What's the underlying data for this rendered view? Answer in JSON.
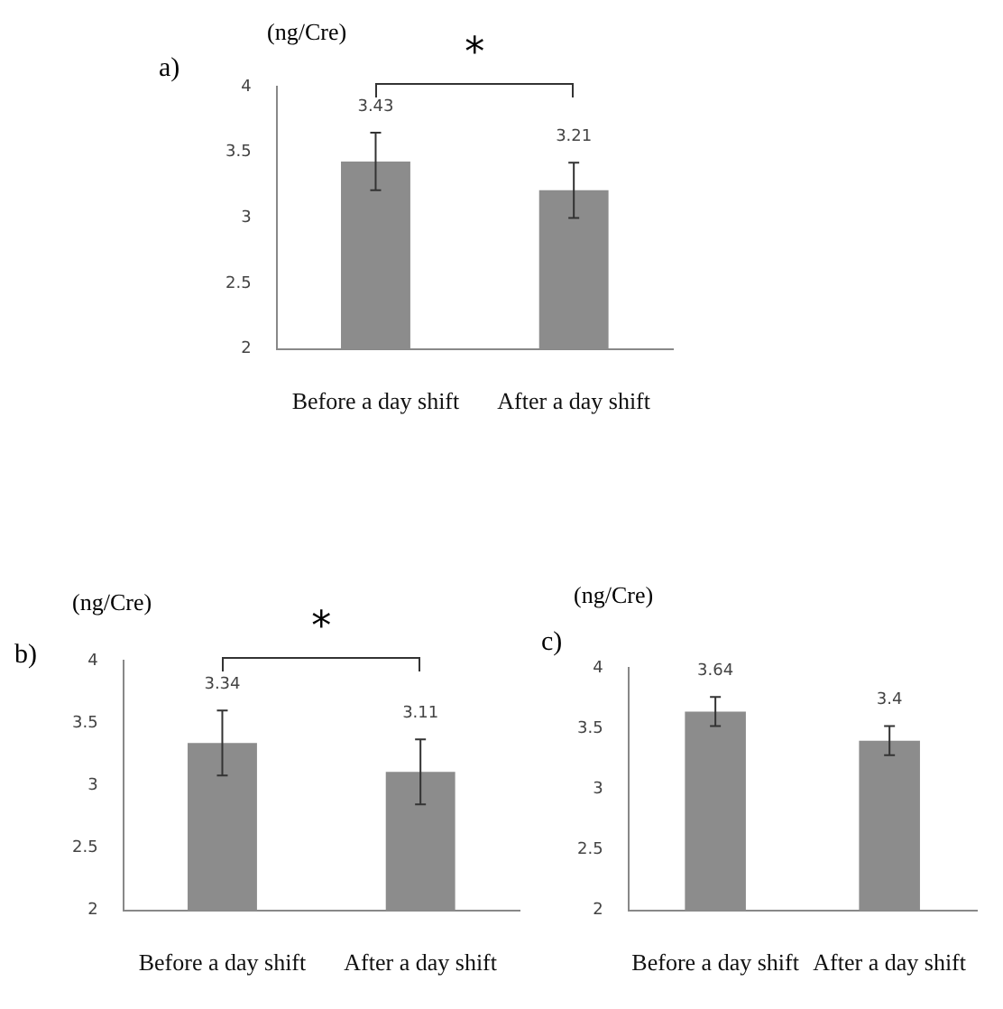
{
  "chart_data": [
    {
      "type": "bar",
      "title": "a)",
      "ylabel": "(ng/Cre)",
      "categories": [
        "Before a day shift",
        "After a day shift"
      ],
      "values": [
        3.43,
        3.21
      ],
      "errors": [
        0.22,
        0.21
      ],
      "color": "#8c8c8c",
      "ylim": [
        2,
        4
      ],
      "yticks": [
        2,
        2.5,
        3,
        3.5,
        4
      ],
      "grid": false,
      "data_labels": true,
      "annotations": [
        "*"
      ]
    },
    {
      "type": "bar",
      "title": "b)",
      "ylabel": "(ng/Cre)",
      "categories": [
        "Before a day shift",
        "After a day shift"
      ],
      "values": [
        3.34,
        3.11
      ],
      "errors": [
        0.26,
        0.26
      ],
      "color": "#8c8c8c",
      "ylim": [
        2,
        4
      ],
      "yticks": [
        2,
        2.5,
        3,
        3.5,
        4
      ],
      "grid": false,
      "data_labels": true,
      "annotations": [
        "*"
      ]
    },
    {
      "type": "bar",
      "title": "c)",
      "ylabel": "(ng/Cre)",
      "categories": [
        "Before a day shift",
        "After a day shift"
      ],
      "values": [
        3.64,
        3.4
      ],
      "errors": [
        0.12,
        0.12
      ],
      "color": "#8c8c8c",
      "ylim": [
        2,
        4
      ],
      "yticks": [
        2,
        2.5,
        3,
        3.5,
        4
      ],
      "grid": false,
      "data_labels": true
    }
  ]
}
